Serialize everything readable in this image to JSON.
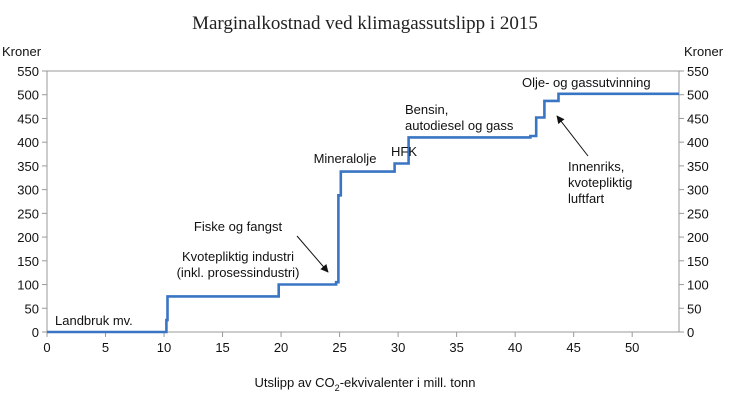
{
  "chart_data": {
    "type": "line",
    "title": "Marginalkostnad ved klimagassutslipp i 2015",
    "xlabel_parts": [
      "Utslipp av CO",
      "2",
      "-ekvivalenter i mill. tonn"
    ],
    "ylabel_left": "Kroner",
    "ylabel_right": "Kroner",
    "xlim": [
      0,
      54
    ],
    "ylim": [
      0,
      550
    ],
    "xticks": [
      0,
      5,
      10,
      15,
      20,
      25,
      30,
      35,
      40,
      45,
      50
    ],
    "yticks": [
      0,
      50,
      100,
      150,
      200,
      250,
      300,
      350,
      400,
      450,
      500,
      550
    ],
    "grid": false,
    "series": [
      {
        "name": "Marginalkostnad",
        "color": "#3a75c4",
        "step_points": [
          [
            0,
            0
          ],
          [
            10.2,
            0
          ],
          [
            10.2,
            25
          ],
          [
            10.3,
            25
          ],
          [
            10.3,
            75
          ],
          [
            19.8,
            75
          ],
          [
            19.8,
            100
          ],
          [
            24.7,
            100
          ],
          [
            24.7,
            105
          ],
          [
            24.9,
            105
          ],
          [
            24.9,
            288
          ],
          [
            25.1,
            288
          ],
          [
            25.1,
            338
          ],
          [
            29.7,
            338
          ],
          [
            29.7,
            355
          ],
          [
            30.9,
            355
          ],
          [
            30.9,
            410
          ],
          [
            41.3,
            410
          ],
          [
            41.3,
            413
          ],
          [
            41.8,
            413
          ],
          [
            41.8,
            452
          ],
          [
            42.5,
            452
          ],
          [
            42.5,
            487
          ],
          [
            43.7,
            487
          ],
          [
            43.7,
            502
          ],
          [
            54,
            502
          ]
        ]
      }
    ],
    "annotations": [
      [
        "Landbruk mv."
      ],
      [
        "Kvotepliktig industri",
        "(inkl. prosessindustri)"
      ],
      [
        "Fiske og fangst"
      ],
      [
        "Mineralolje"
      ],
      [
        "HFK"
      ],
      [
        "Bensin,",
        "autodiesel og gass"
      ],
      [
        "Olje- og  gassutvinning"
      ],
      [
        "Innenriks,",
        "kvotepliktig",
        "luftfart"
      ]
    ]
  }
}
